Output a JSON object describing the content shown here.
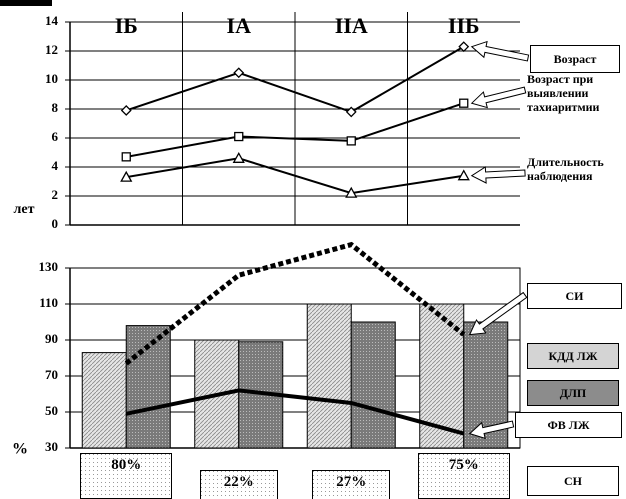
{
  "chart_data": [
    {
      "type": "line",
      "categories": [
        "IБ",
        "IА",
        "IIА",
        "IIБ"
      ],
      "y_label": "лет",
      "ylim": [
        0,
        14
      ],
      "yticks": [
        0,
        2,
        4,
        6,
        8,
        10,
        12,
        14
      ],
      "grid": true,
      "legend": "right",
      "series": [
        {
          "name": "Возраст",
          "color": "#000000",
          "marker": "diamond",
          "values": [
            7.9,
            10.5,
            7.8,
            12.3
          ]
        },
        {
          "name": "Возраст при выявлении тахиаритмии",
          "color": "#000000",
          "marker": "square",
          "values": [
            4.7,
            6.1,
            5.8,
            8.4
          ]
        },
        {
          "name": "Длительность наблюдения",
          "color": "#000000",
          "marker": "triangle",
          "values": [
            3.3,
            4.6,
            2.2,
            3.4
          ]
        }
      ]
    },
    {
      "type": "combo",
      "categories": [
        null,
        null,
        null,
        null
      ],
      "y_label": "%",
      "ylim": [
        30,
        130
      ],
      "yticks": [
        30,
        50,
        70,
        90,
        110,
        130
      ],
      "grid": true,
      "legend": "right",
      "series": [
        {
          "name": "СИ",
          "type": "line",
          "color": "#000000",
          "dash": "dotted",
          "values": [
            77,
            126,
            143,
            93
          ]
        },
        {
          "name": "КДД ЛЖ",
          "type": "bar",
          "color": "#d4d4d4",
          "values": [
            83,
            90,
            110,
            110
          ]
        },
        {
          "name": "ДЛП",
          "type": "bar",
          "color": "#8c8c8c",
          "values": [
            98,
            89,
            100,
            100
          ]
        },
        {
          "name": "ФВ ЛЖ",
          "type": "line",
          "color": "#000000",
          "values": [
            49,
            62,
            55,
            38
          ]
        }
      ],
      "annotations_label": "СН",
      "annotations": [
        "80%",
        "22%",
        "27%",
        "75%"
      ]
    }
  ]
}
